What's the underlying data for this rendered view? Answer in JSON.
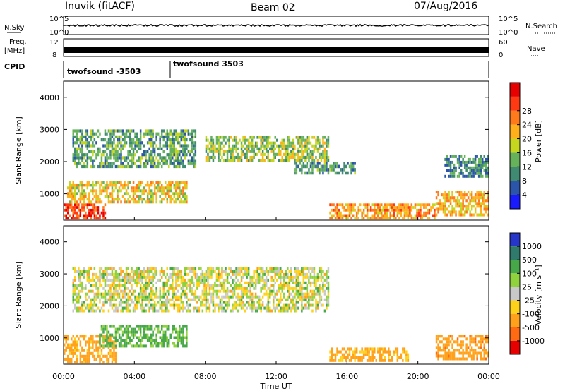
{
  "header": {
    "station": "Inuvik (fitACF)",
    "beam": "Beam 02",
    "date": "07/Aug/2016"
  },
  "side_labels": {
    "nsky": "N.Sky",
    "nsearch": "N.Search",
    "freq_line1": "Freq.",
    "freq_line2": "[MHz]",
    "nave": "Nave",
    "cpid": "CPID"
  },
  "noise_panel": {
    "left_ticks": [
      "10^5",
      "10^0"
    ],
    "right_ticks": [
      "10^5",
      "10^0"
    ]
  },
  "freq_panel": {
    "left_ticks": [
      "12",
      "8"
    ],
    "right_ticks": [
      "60",
      "0"
    ]
  },
  "cpid_labels": [
    "twofsound -3503",
    "twofsound 3503"
  ],
  "x_axis": {
    "label": "Time UT",
    "ticks": [
      "00:00",
      "04:00",
      "08:00",
      "12:00",
      "16:00",
      "20:00",
      "00:00"
    ]
  },
  "power_panel": {
    "ylabel": "Slant Range [km]",
    "yticks": [
      "1000",
      "2000",
      "3000",
      "4000"
    ],
    "colorbar_label": "Power [dB]",
    "colorbar_ticks": [
      "4",
      "8",
      "12",
      "16",
      "20",
      "24",
      "28"
    ],
    "colorbar_colors": [
      "#1a1aff",
      "#2b55a8",
      "#3f8a70",
      "#66b25a",
      "#c6d61f",
      "#ffb01a",
      "#ff7a1a",
      "#ff3a12",
      "#e60000"
    ]
  },
  "velocity_panel": {
    "ylabel": "Slant Range [km]",
    "yticks": [
      "1000",
      "2000",
      "3000",
      "4000"
    ],
    "colorbar_label": "Velocity [m s⁻¹]",
    "colorbar_ticks": [
      "1000",
      "500",
      "100",
      "25",
      "-25",
      "-100",
      "-500",
      "-1000"
    ],
    "colorbar_colors": [
      "#2536c8",
      "#2f7a6a",
      "#47a84a",
      "#8fd23d",
      "#c8c8c8",
      "#ffd21a",
      "#ffa11a",
      "#ff6a12",
      "#e60000"
    ]
  },
  "chart_data": [
    {
      "type": "heatmap",
      "title": "Inuvik (fitACF)  Beam 02  07/Aug/2016",
      "xlabel": "Time UT",
      "ylabel": "Slant Range [km]",
      "xlim": [
        0,
        24
      ],
      "ylim": [
        180,
        4500
      ],
      "colorbar": "Power [dB]",
      "regions": [
        {
          "t0": 0.0,
          "t1": 2.4,
          "r0": 200,
          "r1": 700,
          "value": 28
        },
        {
          "t0": 0.2,
          "t1": 7.0,
          "r0": 700,
          "r1": 1400,
          "value": 18
        },
        {
          "t0": 0.5,
          "t1": 7.5,
          "r0": 1800,
          "r1": 3000,
          "value": 10
        },
        {
          "t0": 8.0,
          "t1": 15.0,
          "r0": 2000,
          "r1": 2800,
          "value": 14
        },
        {
          "t0": 13.0,
          "t1": 16.5,
          "r0": 1600,
          "r1": 2000,
          "value": 9
        },
        {
          "t0": 15.0,
          "t1": 21.0,
          "r0": 200,
          "r1": 700,
          "value": 22
        },
        {
          "t0": 21.0,
          "t1": 24.0,
          "r0": 300,
          "r1": 1100,
          "value": 20
        },
        {
          "t0": 21.5,
          "t1": 24.0,
          "r0": 1500,
          "r1": 2200,
          "value": 8
        }
      ]
    },
    {
      "type": "heatmap",
      "xlabel": "Time UT",
      "ylabel": "Slant Range [km]",
      "xlim": [
        0,
        24
      ],
      "ylim": [
        180,
        4500
      ],
      "colorbar": "Velocity [m s-1]",
      "regions": [
        {
          "t0": 0.0,
          "t1": 3.0,
          "r0": 200,
          "r1": 1100,
          "value": -200
        },
        {
          "t0": 2.0,
          "t1": 7.0,
          "r0": 700,
          "r1": 1400,
          "value": 150
        },
        {
          "t0": 0.5,
          "t1": 15.0,
          "r0": 1800,
          "r1": 3200,
          "value": 0
        },
        {
          "t0": 15.0,
          "t1": 19.5,
          "r0": 250,
          "r1": 700,
          "value": -150
        },
        {
          "t0": 21.0,
          "t1": 24.0,
          "r0": 300,
          "r1": 1100,
          "value": -400
        }
      ]
    }
  ]
}
